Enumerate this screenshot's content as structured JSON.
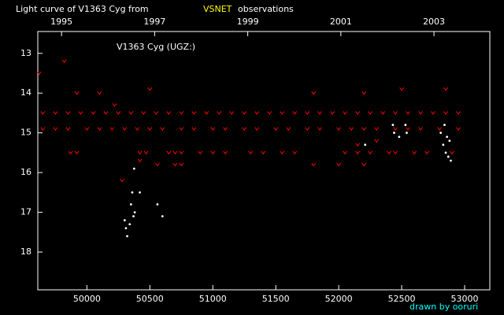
{
  "chart_data": {
    "type": "scatter",
    "title": "Light curve of V1363 Cyg from",
    "title_highlight": "VSNET",
    "title_suffix": "observations",
    "annotation": "V1363 Cyg (UGZ:)",
    "credit": "drawn by ooruri",
    "xlim": [
      49610,
      53200
    ],
    "xticks": [
      50000,
      50500,
      51000,
      51500,
      52000,
      52500,
      53000
    ],
    "x2lim": [
      1994.49,
      2004.2
    ],
    "x2ticks": [
      1995,
      1997,
      1999,
      2001,
      2003
    ],
    "ylim": [
      18.95,
      12.45
    ],
    "yticks": [
      13,
      14,
      15,
      16,
      17,
      18
    ],
    "series": [
      {
        "color": "#ff0000",
        "marker": "v",
        "x": [
          49650,
          49750,
          49850,
          49950,
          50050,
          50150,
          50250,
          50350,
          50450,
          50550,
          50650,
          50750,
          50850,
          50950,
          51050,
          51150,
          51250,
          51350,
          51450,
          51550,
          51650,
          51750,
          51850,
          51950,
          52050,
          52150,
          52250,
          52350,
          52450,
          52550,
          52650,
          52750,
          52850,
          52950,
          49650,
          49750,
          49850,
          50000,
          50100,
          50200,
          50300,
          50400,
          50500,
          50600,
          50750,
          50850,
          51000,
          51100,
          51250,
          51350,
          51500,
          51600,
          51750,
          51850,
          52000,
          52100,
          52200,
          52300,
          52450,
          52550,
          52650,
          52800,
          52950,
          49870,
          49920,
          50420,
          50470,
          50650,
          50700,
          50750,
          50900,
          51000,
          51100,
          51300,
          51400,
          51550,
          51650,
          52050,
          52150,
          52250,
          52400,
          52450,
          52600,
          52700,
          52900,
          50560,
          50700,
          50750,
          51800,
          52000,
          52200,
          49620,
          49820,
          49920,
          50100,
          50500,
          50220,
          52200,
          51800,
          52500,
          52850,
          52300,
          52150,
          50280,
          50420
        ],
        "values": [
          14.5,
          14.5,
          14.5,
          14.5,
          14.5,
          14.5,
          14.5,
          14.5,
          14.5,
          14.5,
          14.5,
          14.5,
          14.5,
          14.5,
          14.5,
          14.5,
          14.5,
          14.5,
          14.5,
          14.5,
          14.5,
          14.5,
          14.5,
          14.5,
          14.5,
          14.5,
          14.5,
          14.5,
          14.5,
          14.5,
          14.5,
          14.5,
          14.5,
          14.5,
          14.9,
          14.9,
          14.9,
          14.9,
          14.9,
          14.9,
          14.9,
          14.9,
          14.9,
          14.9,
          14.9,
          14.9,
          14.9,
          14.9,
          14.9,
          14.9,
          14.9,
          14.9,
          14.9,
          14.9,
          14.9,
          14.9,
          14.9,
          14.9,
          14.9,
          14.9,
          14.9,
          14.9,
          14.9,
          15.5,
          15.5,
          15.5,
          15.5,
          15.5,
          15.5,
          15.5,
          15.5,
          15.5,
          15.5,
          15.5,
          15.5,
          15.5,
          15.5,
          15.5,
          15.5,
          15.5,
          15.5,
          15.5,
          15.5,
          15.5,
          15.5,
          15.8,
          15.8,
          15.8,
          15.8,
          15.8,
          15.8,
          13.5,
          13.2,
          14.0,
          14.0,
          13.9,
          14.3,
          14.0,
          14.0,
          13.9,
          13.9,
          15.2,
          15.3,
          16.2,
          15.7
        ]
      },
      {
        "color": "#ffffff",
        "marker": "dot",
        "x": [
          50300,
          50310,
          50320,
          50350,
          50360,
          50370,
          50380,
          50340,
          50375,
          50420,
          50560,
          50600,
          52210,
          52430,
          52440,
          52480,
          52530,
          52540,
          52810,
          52830,
          52840,
          52850,
          52870,
          52880,
          52860,
          52890
        ],
        "values": [
          17.2,
          17.4,
          17.6,
          16.8,
          16.5,
          17.1,
          17.0,
          17.3,
          15.9,
          16.5,
          16.8,
          17.1,
          15.3,
          14.8,
          15.0,
          15.1,
          14.8,
          15.0,
          15.0,
          15.3,
          14.8,
          15.5,
          15.6,
          15.2,
          15.1,
          15.7
        ]
      }
    ]
  }
}
